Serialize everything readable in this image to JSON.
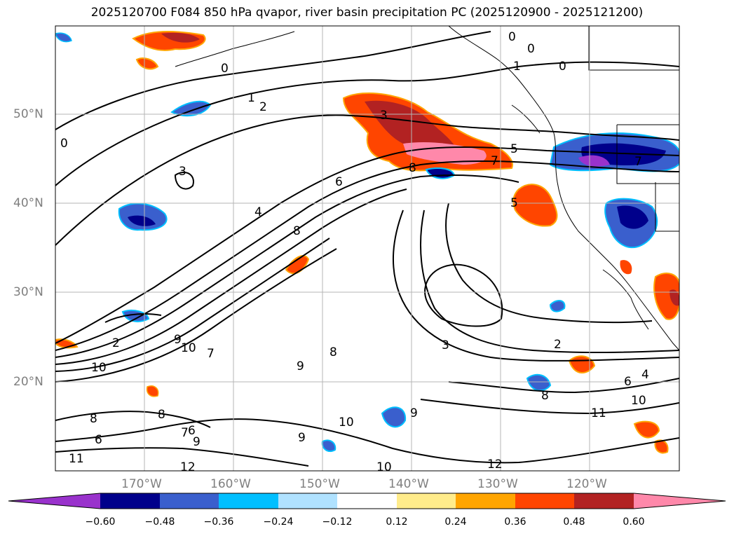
{
  "title": "2025120700 F084 850 hPa qvapor, river basin precipitation PC (2025120900 - 2025121200)",
  "lat_labels": [
    "50°N",
    "40°N",
    "30°N",
    "20°N"
  ],
  "lon_labels": [
    "170°W",
    "160°W",
    "150°W",
    "140°W",
    "130°W",
    "120°W"
  ],
  "contour_labels": [
    "0",
    "1",
    "2",
    "3",
    "4",
    "5",
    "6",
    "7",
    "8",
    "9",
    "10",
    "11",
    "12"
  ],
  "colorbar": {
    "ticks": [
      "−0.60",
      "−0.48",
      "−0.36",
      "−0.24",
      "−0.12",
      "0.12",
      "0.24",
      "0.36",
      "0.48",
      "0.60"
    ],
    "colors": [
      "#9932cc",
      "#00008b",
      "#3a5fcd",
      "#00bfff",
      "#b0e2ff",
      "#ffffff",
      "#ffec8b",
      "#ffa500",
      "#ff4500",
      "#b22222",
      "#ff88aa"
    ]
  }
}
